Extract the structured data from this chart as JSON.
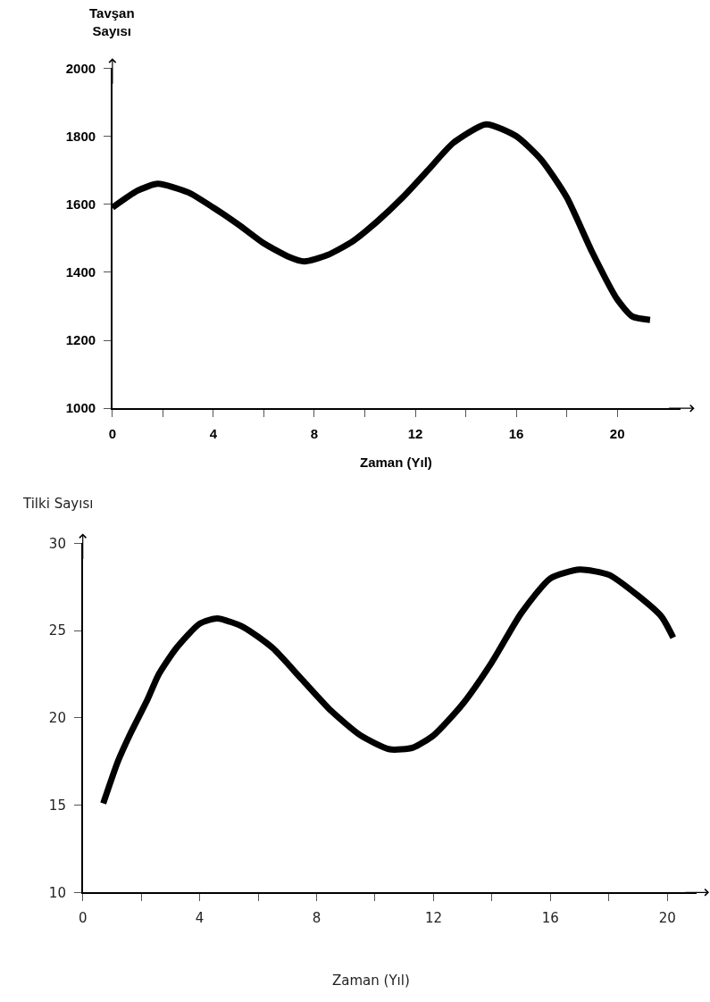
{
  "chart_data": [
    {
      "type": "line",
      "ylabel": "Tavşan Sayısı",
      "xlabel": "Zaman (Yıl)",
      "x": [
        0,
        1,
        1.8,
        3,
        4,
        5,
        6,
        7,
        7.6,
        8.5,
        9.5,
        10.5,
        11.5,
        12.5,
        13.5,
        14.8,
        16,
        17,
        18,
        19,
        20,
        20.6,
        21.3
      ],
      "series": [
        {
          "color": "#000000",
          "values": [
            1590,
            1640,
            1660,
            1635,
            1590,
            1540,
            1485,
            1445,
            1432,
            1450,
            1490,
            1550,
            1620,
            1700,
            1780,
            1835,
            1800,
            1730,
            1620,
            1460,
            1320,
            1270,
            1260
          ]
        }
      ],
      "xlim": [
        0,
        22.5
      ],
      "xticks": [
        0,
        {
          "value": 2,
          "label": null
        },
        4,
        {
          "value": 6,
          "label": null
        },
        8,
        {
          "value": 10,
          "label": null
        },
        12,
        {
          "value": 14,
          "label": null
        },
        16,
        {
          "value": 18,
          "label": null
        },
        20
      ],
      "ylim": [
        1000,
        2000
      ],
      "yticks": [
        1000,
        1200,
        1400,
        1600,
        1800,
        2000
      ],
      "marker": "none",
      "line_style": "solid"
    },
    {
      "type": "line",
      "ylabel": "Tilki Sayısı",
      "xlabel": "Zaman (Yıl)",
      "x": [
        0.7,
        1.2,
        1.6,
        2.2,
        2.6,
        3.2,
        4,
        4.6,
        5.5,
        6.5,
        7.5,
        8.5,
        9.5,
        10.5,
        11.3,
        12,
        13,
        14,
        15,
        16,
        17,
        18,
        19,
        19.8,
        20.2
      ],
      "series": [
        {
          "color": "#000000",
          "values": [
            15.1,
            17.5,
            19,
            21,
            22.5,
            24,
            25.4,
            25.7,
            25.2,
            24,
            22.2,
            20.4,
            19,
            18.2,
            18.3,
            19,
            20.8,
            23.2,
            26,
            28,
            28.5,
            28.2,
            27,
            25.8,
            24.6
          ]
        }
      ],
      "xlim": [
        0,
        21
      ],
      "xticks": [
        0,
        {
          "value": 2,
          "label": null
        },
        4,
        {
          "value": 6,
          "label": null
        },
        8,
        {
          "value": 10,
          "label": null
        },
        12,
        {
          "value": 14,
          "label": null
        },
        16,
        {
          "value": 18,
          "label": null
        },
        20
      ],
      "ylim": [
        10,
        30
      ],
      "yticks": [
        10,
        15,
        20,
        25,
        30
      ],
      "marker": "none",
      "line_style": "solid"
    }
  ]
}
